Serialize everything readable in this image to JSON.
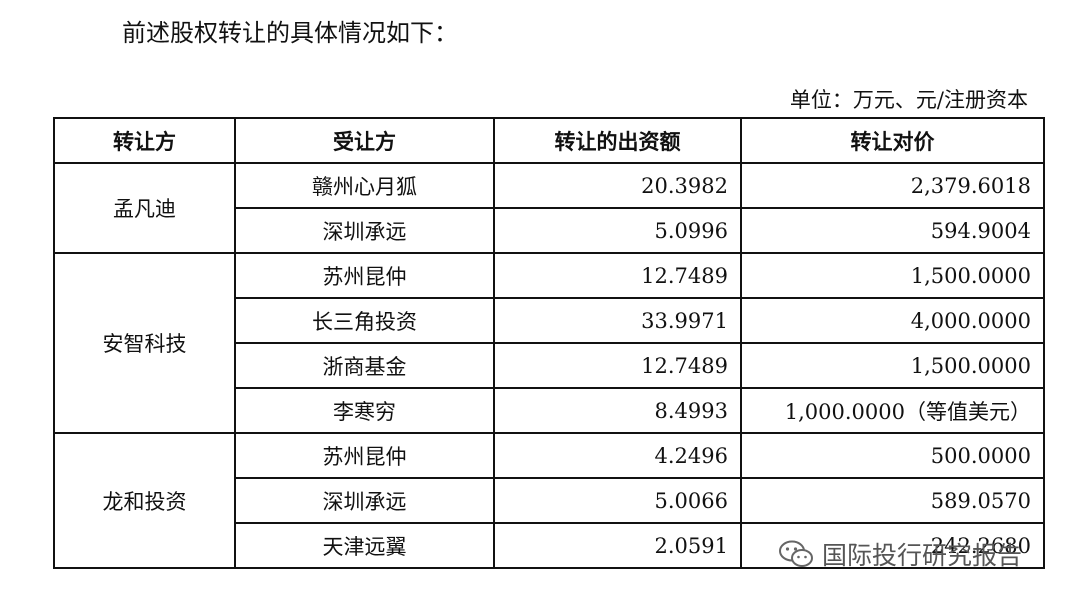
{
  "intro": "前述股权转让的具体情况如下：",
  "unit_note": "单位：万元、元/注册资本",
  "headers": [
    "转让方",
    "受让方",
    "转让的出资额",
    "转让对价"
  ],
  "groups": [
    {
      "transferor": "孟凡迪",
      "rows": [
        {
          "transferee": "赣州心月狐",
          "amount": "20.3982",
          "price": "2,379.6018"
        },
        {
          "transferee": "深圳承远",
          "amount": "5.0996",
          "price": "594.9004"
        }
      ]
    },
    {
      "transferor": "安智科技",
      "rows": [
        {
          "transferee": "苏州昆仲",
          "amount": "12.7489",
          "price": "1,500.0000"
        },
        {
          "transferee": "长三角投资",
          "amount": "33.9971",
          "price": "4,000.0000"
        },
        {
          "transferee": "浙商基金",
          "amount": "12.7489",
          "price": "1,500.0000"
        },
        {
          "transferee": "李寒穷",
          "amount": "8.4993",
          "price": "1,000.0000（等值美元）"
        }
      ]
    },
    {
      "transferor": "龙和投资",
      "rows": [
        {
          "transferee": "苏州昆仲",
          "amount": "4.2496",
          "price": "500.0000"
        },
        {
          "transferee": "深圳承远",
          "amount": "5.0066",
          "price": "589.0570"
        },
        {
          "transferee": "天津远翼",
          "amount": "2.0591",
          "price": "242.2680"
        }
      ]
    }
  ],
  "watermark": {
    "text": "国际投行研究报告",
    "icon": "wechat-icon"
  }
}
